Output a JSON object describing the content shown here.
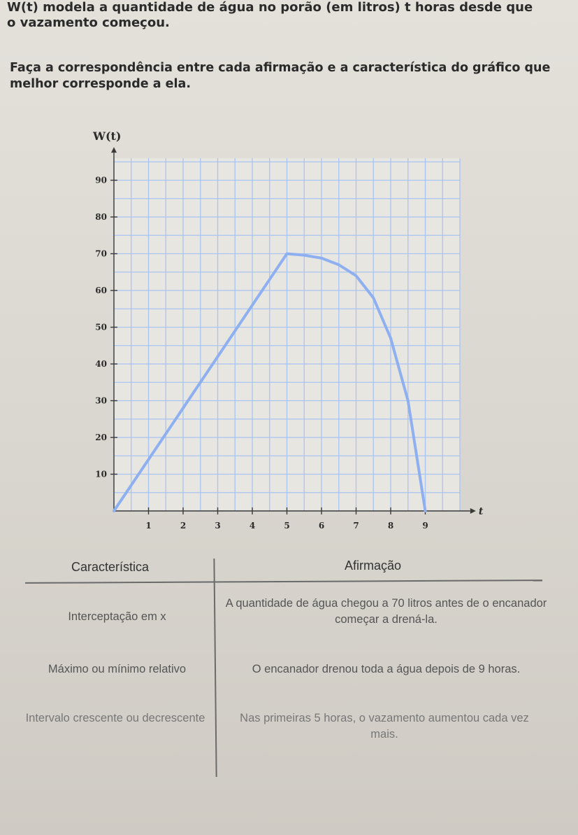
{
  "intro": {
    "line1": "W(t) modela a quantidade de água no porão (em litros) t horas desde que",
    "line2": "o vazamento começou."
  },
  "instruction": "Faça a correspondência entre cada afirmação e a característica do gráfico que melhor corresponde a ela.",
  "chart_data": {
    "type": "line",
    "ylabel": "W(t)",
    "xlabel": "t",
    "xlim": [
      0,
      10
    ],
    "ylim": [
      0,
      100
    ],
    "x_ticks": [
      "1",
      "2",
      "3",
      "4",
      "5",
      "6",
      "7",
      "8",
      "9"
    ],
    "y_ticks": [
      "10",
      "20",
      "30",
      "40",
      "50",
      "60",
      "70",
      "80",
      "90"
    ],
    "grid": true,
    "line_color": "#8fb0f0",
    "series": [
      {
        "x": [
          0,
          5,
          5.5,
          6,
          6.5,
          7,
          7.5,
          8,
          8.5,
          9
        ],
        "y": [
          0,
          70,
          69.6,
          68.8,
          67,
          64,
          58,
          47,
          30,
          0
        ]
      }
    ]
  },
  "table": {
    "header_characteristic": "Característica",
    "header_statement": "Afirmação",
    "rows": [
      {
        "characteristic": "Interceptação em x",
        "statement": "A quantidade de água chegou a 70 litros antes de o encanador começar a drená-la."
      },
      {
        "characteristic": "Máximo ou mínimo relativo",
        "statement": "O encanador drenou toda a água depois de 9 horas."
      },
      {
        "characteristic": "Intervalo crescente ou decrescente",
        "statement": "Nas primeiras 5 horas, o vazamento aumentou cada vez mais."
      }
    ]
  }
}
